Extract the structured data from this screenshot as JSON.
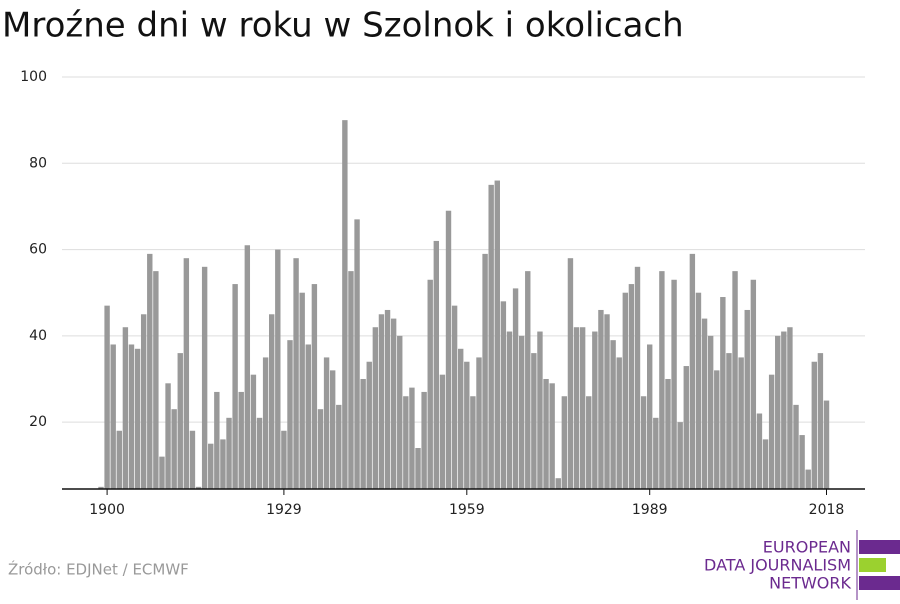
{
  "chart_data": {
    "type": "bar",
    "title": "Mroźne dni w roku w Szolnok i okolicach",
    "source": "Źródło: EDJNet / ECMWF",
    "logo": [
      "EUROPEAN",
      "DATA JOURNALISM",
      "NETWORK"
    ],
    "color": "#999999",
    "grid": true,
    "ylim": [
      4.5,
      100
    ],
    "yticks": [
      20,
      40,
      60,
      80,
      100
    ],
    "categories": [
      null,
      "1900",
      null,
      null,
      null,
      null,
      null,
      null,
      null,
      null,
      null,
      null,
      null,
      null,
      null,
      null,
      null,
      null,
      null,
      null,
      null,
      null,
      null,
      null,
      null,
      null,
      null,
      null,
      null,
      null,
      "1929",
      null,
      null,
      null,
      null,
      null,
      null,
      null,
      null,
      null,
      null,
      null,
      null,
      null,
      null,
      null,
      null,
      null,
      null,
      null,
      null,
      null,
      null,
      null,
      null,
      null,
      null,
      null,
      null,
      null,
      "1959",
      null,
      null,
      null,
      null,
      null,
      null,
      null,
      null,
      null,
      null,
      null,
      null,
      null,
      null,
      null,
      null,
      null,
      null,
      null,
      null,
      null,
      null,
      null,
      null,
      null,
      null,
      null,
      null,
      null,
      "1989",
      null,
      null,
      null,
      null,
      null,
      null,
      null,
      null,
      null,
      null,
      null,
      null,
      null,
      null,
      null,
      null,
      null,
      null,
      null,
      null,
      null,
      null,
      null,
      null,
      null,
      null,
      null,
      null,
      "2018"
    ],
    "values": [
      5,
      47,
      38,
      18,
      42,
      38,
      37,
      45,
      59,
      55,
      12,
      29,
      23,
      36,
      58,
      18,
      5,
      56,
      15,
      27,
      16,
      21,
      52,
      27,
      61,
      31,
      21,
      35,
      45,
      60,
      18,
      39,
      58,
      50,
      38,
      52,
      23,
      35,
      32,
      24,
      90,
      55,
      67,
      30,
      34,
      42,
      45,
      46,
      44,
      40,
      26,
      28,
      14,
      27,
      53,
      62,
      31,
      69,
      47,
      37,
      34,
      26,
      35,
      59,
      75,
      76,
      48,
      41,
      51,
      40,
      55,
      36,
      41,
      30,
      29,
      7,
      26,
      58,
      42,
      42,
      26,
      41,
      46,
      45,
      39,
      35,
      50,
      52,
      56,
      26,
      38,
      21,
      55,
      30,
      53,
      20,
      33,
      59,
      50,
      44,
      40,
      32,
      49,
      36,
      55,
      35,
      46,
      53,
      22,
      16,
      31,
      40,
      41,
      42,
      24,
      17,
      9,
      34,
      36,
      25
    ]
  }
}
